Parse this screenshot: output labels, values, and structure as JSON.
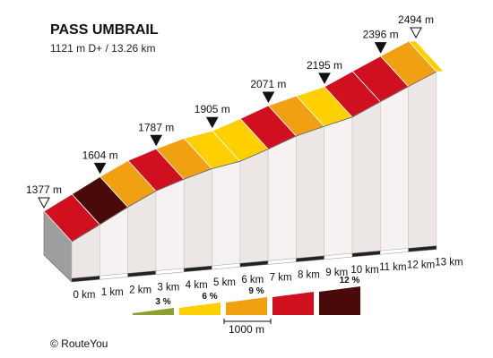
{
  "chart_data": {
    "type": "area",
    "title": "PASS UMBRAIL",
    "subtitle": "1121 m D+ / 13.26 km",
    "x_unit": "km",
    "x_ticks": [
      "0 km",
      "1 km",
      "2 km",
      "3 km",
      "4 km",
      "5 km",
      "6 km",
      "7 km",
      "8 km",
      "9 km",
      "10 km",
      "11 km",
      "12 km",
      "13 km"
    ],
    "profile": [
      {
        "km": 0,
        "elevation": 1377
      },
      {
        "km": 1,
        "elevation": 1489
      },
      {
        "km": 2,
        "elevation": 1604
      },
      {
        "km": 3,
        "elevation": 1710
      },
      {
        "km": 4,
        "elevation": 1787
      },
      {
        "km": 5,
        "elevation": 1856
      },
      {
        "km": 6,
        "elevation": 1905
      },
      {
        "km": 7,
        "elevation": 1985
      },
      {
        "km": 8,
        "elevation": 2071
      },
      {
        "km": 9,
        "elevation": 2135
      },
      {
        "km": 10,
        "elevation": 2195
      },
      {
        "km": 11,
        "elevation": 2296
      },
      {
        "km": 12,
        "elevation": 2396
      },
      {
        "km": 13,
        "elevation": 2494
      }
    ],
    "segment_colors": [
      "#d0101e",
      "#4a0a0a",
      "#f0a010",
      "#d0101e",
      "#f0a010",
      "#ffd000",
      "#ffd000",
      "#d0101e",
      "#f0a010",
      "#ffd000",
      "#d0101e",
      "#d0101e",
      "#f0a010",
      "#ffd000"
    ],
    "elevation_markers": [
      {
        "km": 0,
        "label": "1377 m",
        "hollow": true
      },
      {
        "km": 2,
        "label": "1604 m",
        "hollow": false
      },
      {
        "km": 4,
        "label": "1787 m",
        "hollow": false
      },
      {
        "km": 6,
        "label": "1905 m",
        "hollow": false
      },
      {
        "km": 8,
        "label": "2071 m",
        "hollow": false
      },
      {
        "km": 10,
        "label": "2195 m",
        "hollow": false
      },
      {
        "km": 12,
        "label": "2396 m",
        "hollow": false
      },
      {
        "km": 13.26,
        "label": "2494 m",
        "hollow": true
      }
    ],
    "legend": [
      {
        "label": "3 %",
        "color": "#8aa030"
      },
      {
        "label": "6 %",
        "color": "#ffd000"
      },
      {
        "label": "9 %",
        "color": "#f0a010"
      },
      {
        "label": "",
        "color": "#d0101e"
      },
      {
        "label": "12 %",
        "color": "#4a0a0a"
      }
    ],
    "scale_bar": "1000 m",
    "credit": "© RouteYou"
  }
}
